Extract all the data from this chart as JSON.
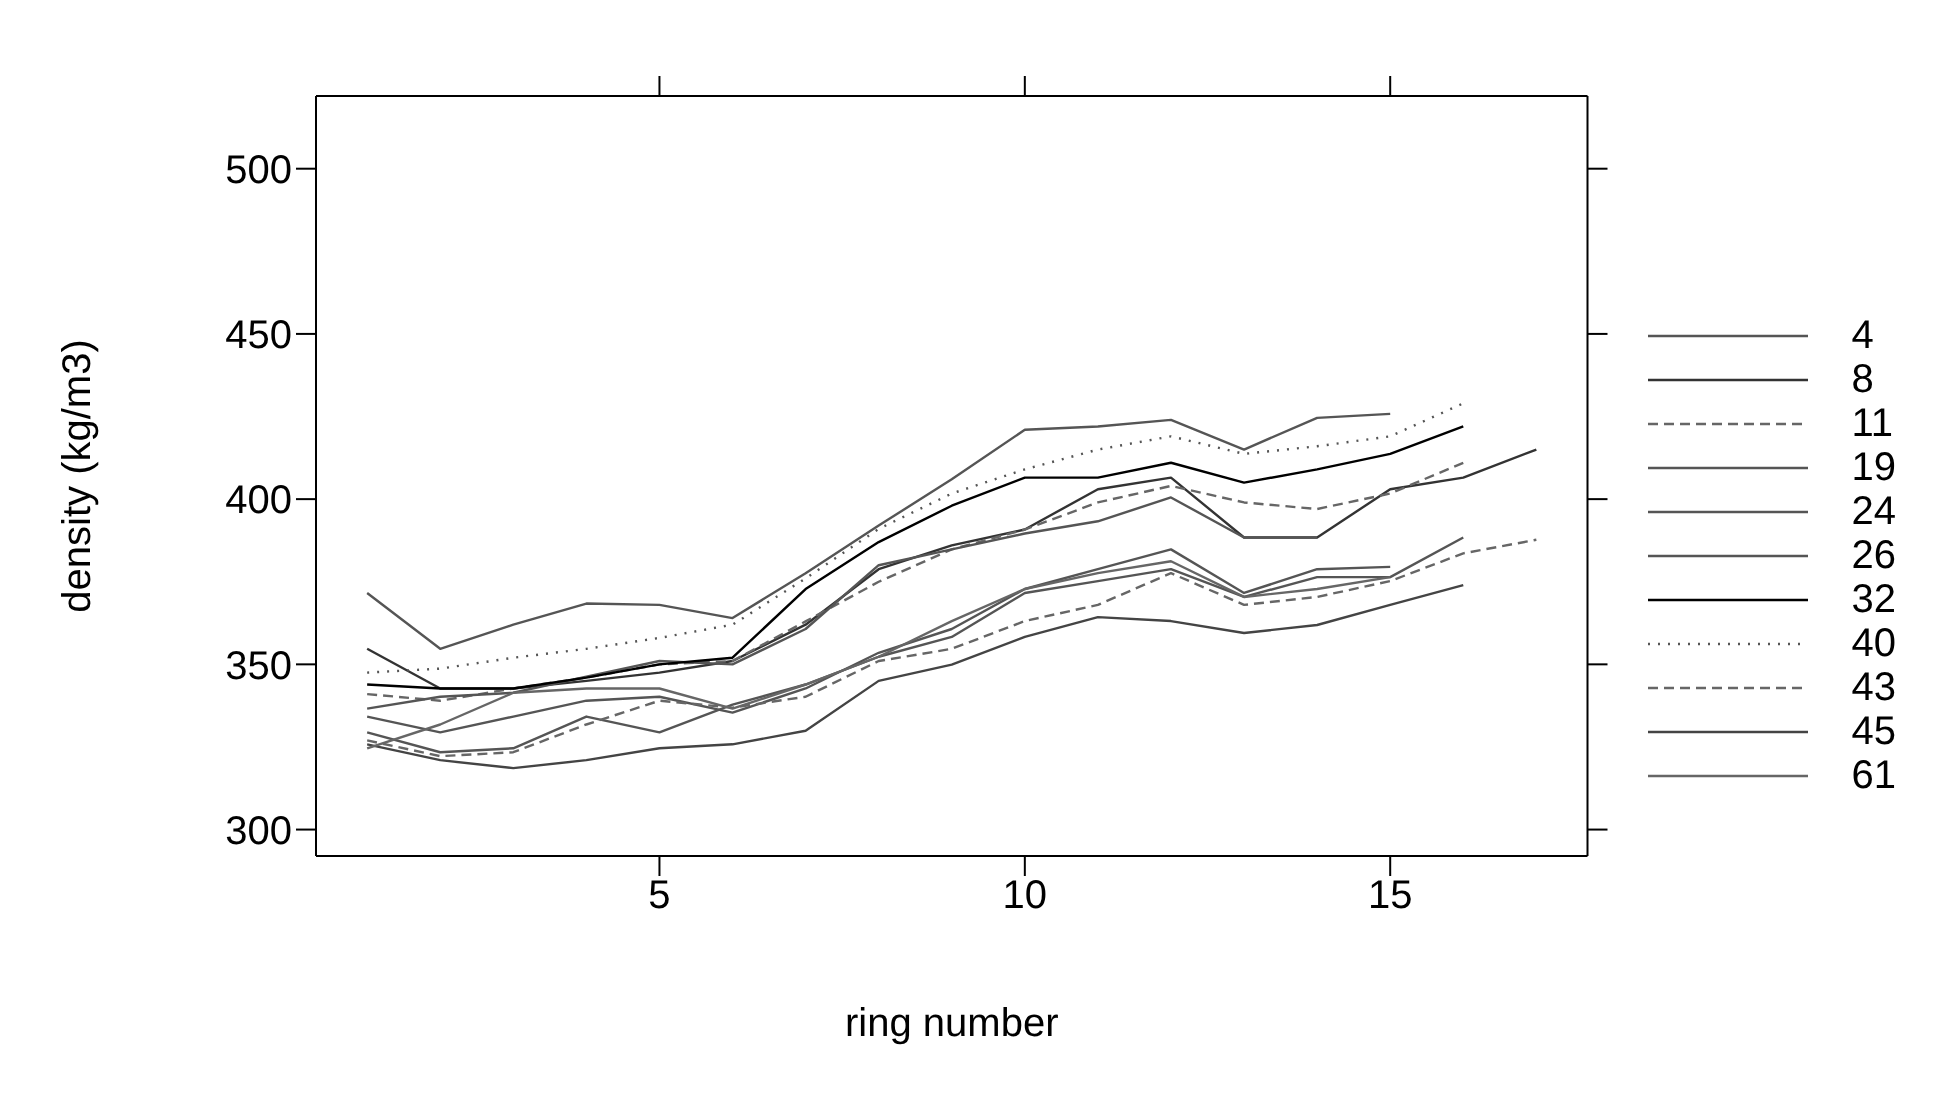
{
  "chart_data": {
    "type": "line",
    "xlabel": "ring number",
    "ylabel": "density (kg/m3)",
    "x": [
      1,
      2,
      3,
      4,
      5,
      6,
      7,
      8,
      9,
      10,
      11,
      12,
      13,
      14,
      15,
      16,
      17
    ],
    "xlim": [
      0.3,
      17.7
    ],
    "xticks": [
      5,
      10,
      15
    ],
    "ylim": [
      292,
      522
    ],
    "yticks": [
      300,
      350,
      400,
      450,
      500
    ],
    "grid": false,
    "legend": "right",
    "marker": "none",
    "series": [
      {
        "name": "4",
        "color": "#555555",
        "line_style": "solid",
        "values": [
          371.6,
          354.7,
          362,
          368.4,
          368,
          364,
          377.6,
          392,
          406,
          421,
          422,
          424,
          415,
          424.6,
          425.8,
          null,
          null
        ]
      },
      {
        "name": "8",
        "color": "#333333",
        "line_style": "solid",
        "values": [
          354.7,
          342.7,
          342.7,
          345,
          347.5,
          351,
          362,
          378.8,
          386,
          390.8,
          403,
          406.5,
          388.4,
          388.4,
          403,
          406.5,
          415
        ]
      },
      {
        "name": "11",
        "color": "#666666",
        "line_style": "dashed",
        "values": [
          341,
          339,
          342.7,
          346,
          350,
          351,
          363,
          375,
          384.8,
          390.8,
          399,
          404,
          399,
          397,
          401.7,
          411,
          null
        ]
      },
      {
        "name": "19",
        "color": "#555555",
        "line_style": "solid",
        "values": [
          336.6,
          340.2,
          341.4,
          346.3,
          351,
          350,
          360.7,
          380,
          384.8,
          389.6,
          393.3,
          400.5,
          388.4,
          388.4,
          null,
          null,
          null
        ]
      },
      {
        "name": "24",
        "color": "#555555",
        "line_style": "solid",
        "values": [
          334.2,
          329.4,
          334.2,
          339,
          340.2,
          335.4,
          342.7,
          353.5,
          360.7,
          372.8,
          378.8,
          384.8,
          371.6,
          378.8,
          379.5,
          null,
          null
        ]
      },
      {
        "name": "26",
        "color": "#555555",
        "line_style": "solid",
        "values": [
          329.4,
          323.4,
          324.6,
          334.2,
          329.4,
          337.8,
          343.9,
          352.3,
          358.3,
          371.6,
          375.2,
          378.8,
          370.4,
          376.4,
          376.4,
          388.4,
          null
        ]
      },
      {
        "name": "32",
        "color": "#000000",
        "line_style": "solid",
        "values": [
          343.9,
          342.7,
          342.7,
          346,
          350,
          352,
          372.8,
          387,
          398,
          406.5,
          406.5,
          411,
          405,
          409,
          413.7,
          422,
          null
        ]
      },
      {
        "name": "40",
        "color": "#555555",
        "line_style": "dotted",
        "values": [
          347.5,
          348.7,
          352,
          354.7,
          358,
          362,
          376,
          391,
          401.7,
          409,
          415,
          419,
          413.7,
          416,
          419,
          429,
          null
        ]
      },
      {
        "name": "43",
        "color": "#666666",
        "line_style": "dashed",
        "values": [
          327,
          322.2,
          323.4,
          331.8,
          339,
          336.9,
          340.2,
          351,
          354.7,
          363.1,
          368,
          377.6,
          368,
          370.4,
          375.2,
          383.6,
          387.7
        ]
      },
      {
        "name": "45",
        "color": "#444444",
        "line_style": "solid",
        "values": [
          325.8,
          321,
          318.6,
          321,
          324.6,
          325.8,
          329.9,
          345,
          349.9,
          358.3,
          364.3,
          363.1,
          359.5,
          361.9,
          368,
          374,
          null
        ]
      },
      {
        "name": "61",
        "color": "#666666",
        "line_style": "solid",
        "values": [
          324.6,
          331.8,
          341.4,
          342.7,
          342.7,
          336.6,
          343.9,
          352.3,
          363.1,
          372.8,
          377.6,
          381.2,
          370.4,
          372.8,
          376.4,
          null,
          null
        ]
      }
    ]
  }
}
